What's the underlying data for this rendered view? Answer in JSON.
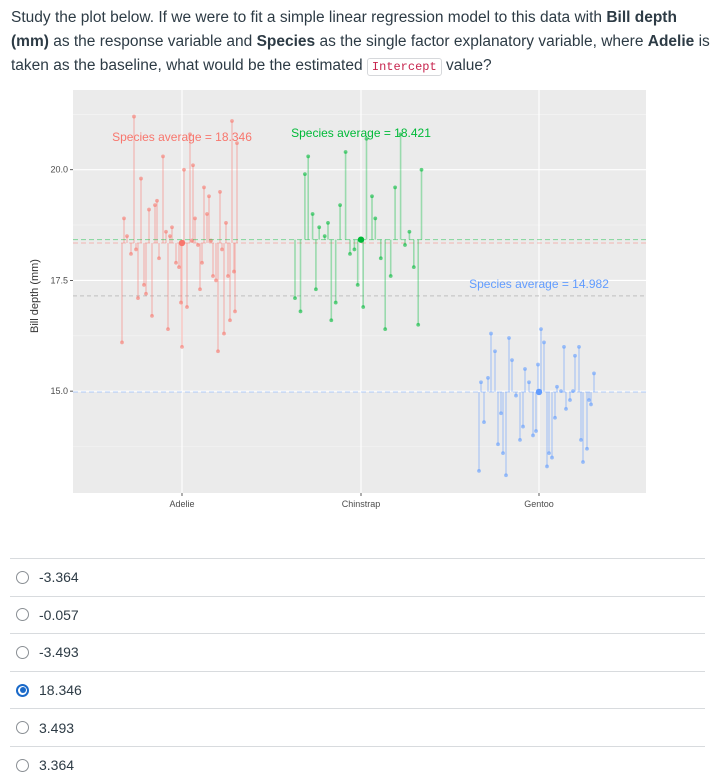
{
  "question": {
    "part1": "Study the plot below. If we were to fit a simple linear regression model to this data with ",
    "bold1": "Bill depth (mm)",
    "part2": " as the response variable and ",
    "bold2": "Species",
    "part3": " as the single factor explanatory variable, where ",
    "bold3": "Adelie",
    "part4": " is taken as the baseline, what would be the estimated ",
    "code": "Intercept",
    "part5": " value?"
  },
  "chart_data": {
    "type": "scatter",
    "ylabel": "Bill depth (mm)",
    "xlabel": "",
    "categories": [
      "Adelie",
      "Chinstrap",
      "Gentoo"
    ],
    "y_ticks": [
      "15.0",
      "17.5",
      "20.0"
    ],
    "ylim": [
      12.7,
      21.8
    ],
    "grid": true,
    "overall_mean": 17.15,
    "groups": [
      {
        "name": "Adelie",
        "mean": 18.346,
        "color": "#f8766d",
        "label": "Species average = 18.346",
        "values": [
          16.1,
          21.2,
          17.4,
          19.2,
          20.3,
          18.7,
          17.8,
          16.9,
          18.9,
          19.6,
          17.6,
          18.2,
          16.6,
          20.6,
          18.5,
          17.1,
          19.1,
          18.0,
          16.4,
          17.9,
          20.0,
          18.4,
          17.3,
          19.4,
          15.9,
          18.8,
          17.7,
          18.1,
          19.8,
          16.7,
          18.6,
          17.0,
          20.8,
          18.3,
          19.0,
          17.5,
          16.3,
          21.1,
          18.9,
          17.2,
          19.3,
          18.5,
          16.0,
          20.1,
          17.9,
          18.4,
          19.5,
          17.6,
          16.8,
          18.2
        ]
      },
      {
        "name": "Chinstrap",
        "mean": 18.421,
        "color": "#00ba38",
        "label": "Species average = 18.421",
        "values": [
          17.1,
          20.3,
          18.7,
          16.6,
          19.2,
          18.1,
          17.4,
          20.7,
          18.9,
          16.4,
          19.6,
          18.3,
          17.8,
          20.0,
          16.8,
          19.0,
          18.5,
          17.0,
          20.4,
          18.2,
          16.9,
          19.4,
          18.0,
          17.6,
          20.8,
          18.6,
          16.5,
          19.9,
          17.3,
          18.8
        ]
      },
      {
        "name": "Gentoo",
        "mean": 14.982,
        "color": "#619cff",
        "label": "Species average = 14.982",
        "values": [
          13.2,
          16.3,
          14.5,
          15.7,
          13.9,
          15.2,
          14.1,
          16.1,
          13.5,
          15.0,
          14.8,
          16.0,
          13.7,
          15.4,
          14.3,
          15.9,
          13.1,
          14.9,
          15.5,
          14.0,
          16.4,
          13.6,
          15.1,
          14.6,
          15.8,
          13.4,
          14.7,
          15.3,
          13.8,
          16.2,
          14.2,
          15.6,
          13.3,
          14.4,
          16.0,
          15.0,
          13.9,
          14.8,
          15.2,
          13.6
        ]
      }
    ]
  },
  "options": [
    {
      "label": "-3.364",
      "selected": false
    },
    {
      "label": "-0.057",
      "selected": false
    },
    {
      "label": "-3.493",
      "selected": false
    },
    {
      "label": "18.346",
      "selected": true
    },
    {
      "label": "3.493",
      "selected": false
    },
    {
      "label": "3.364",
      "selected": false
    }
  ]
}
